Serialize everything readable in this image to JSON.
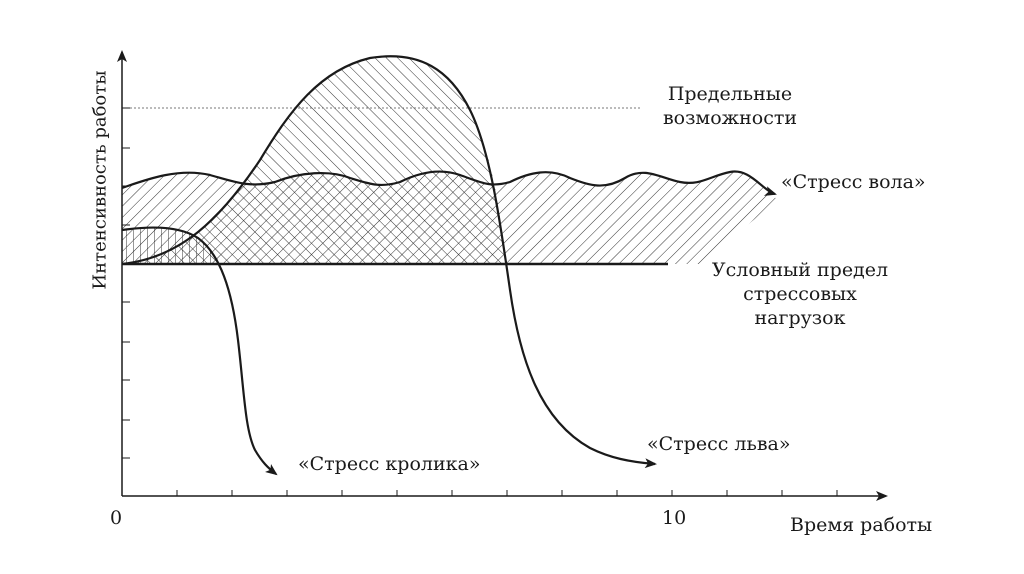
{
  "diagram": {
    "ylabel": "Интенсивность работы",
    "xlabel": "Время работы",
    "x_origin": "0",
    "x_tick_10": "10",
    "labels": {
      "max_capacity_line1": "Предельные",
      "max_capacity_line2": "возможности",
      "ox_stress": "«Стресс вола»",
      "stress_limit_line1": "Условный предел",
      "stress_limit_line2": "стрессовых",
      "stress_limit_line3": "нагрузок",
      "rabbit_stress": "«Стресс кролика»",
      "lion_stress": "«Стресс льва»"
    }
  }
}
